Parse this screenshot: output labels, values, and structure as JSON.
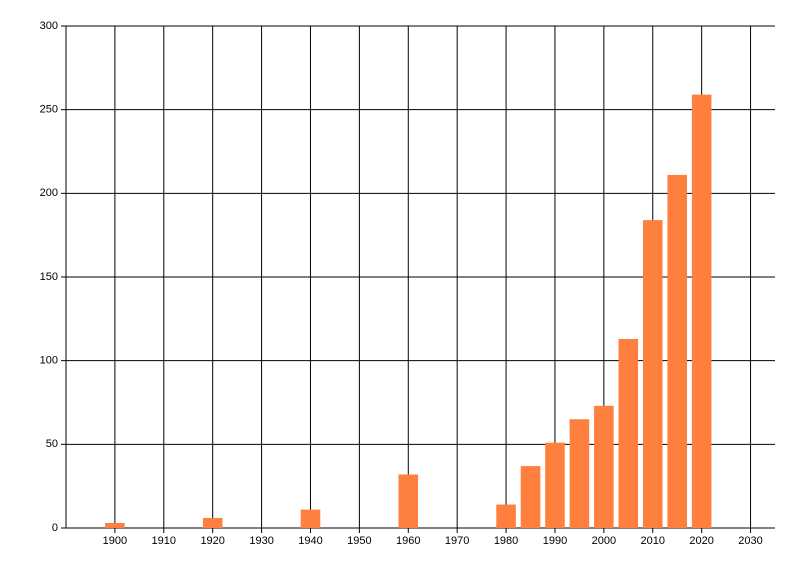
{
  "chart_data": {
    "type": "bar",
    "x": [
      1900,
      1920,
      1940,
      1960,
      1980,
      1985,
      1990,
      1995,
      2000,
      2005,
      2010,
      2015,
      2020
    ],
    "values": [
      3,
      6,
      11,
      32,
      14,
      37,
      51,
      65,
      73,
      113,
      184,
      211,
      259
    ],
    "color": "#ff7f3f",
    "xlim": [
      1890,
      2035
    ],
    "xticks": [
      1900,
      1910,
      1920,
      1930,
      1940,
      1950,
      1960,
      1970,
      1980,
      1990,
      2000,
      2010,
      2020,
      2030
    ],
    "ylim": [
      0,
      300
    ],
    "yticks": [
      0,
      50,
      100,
      150,
      200,
      250,
      300
    ],
    "grid": true
  }
}
